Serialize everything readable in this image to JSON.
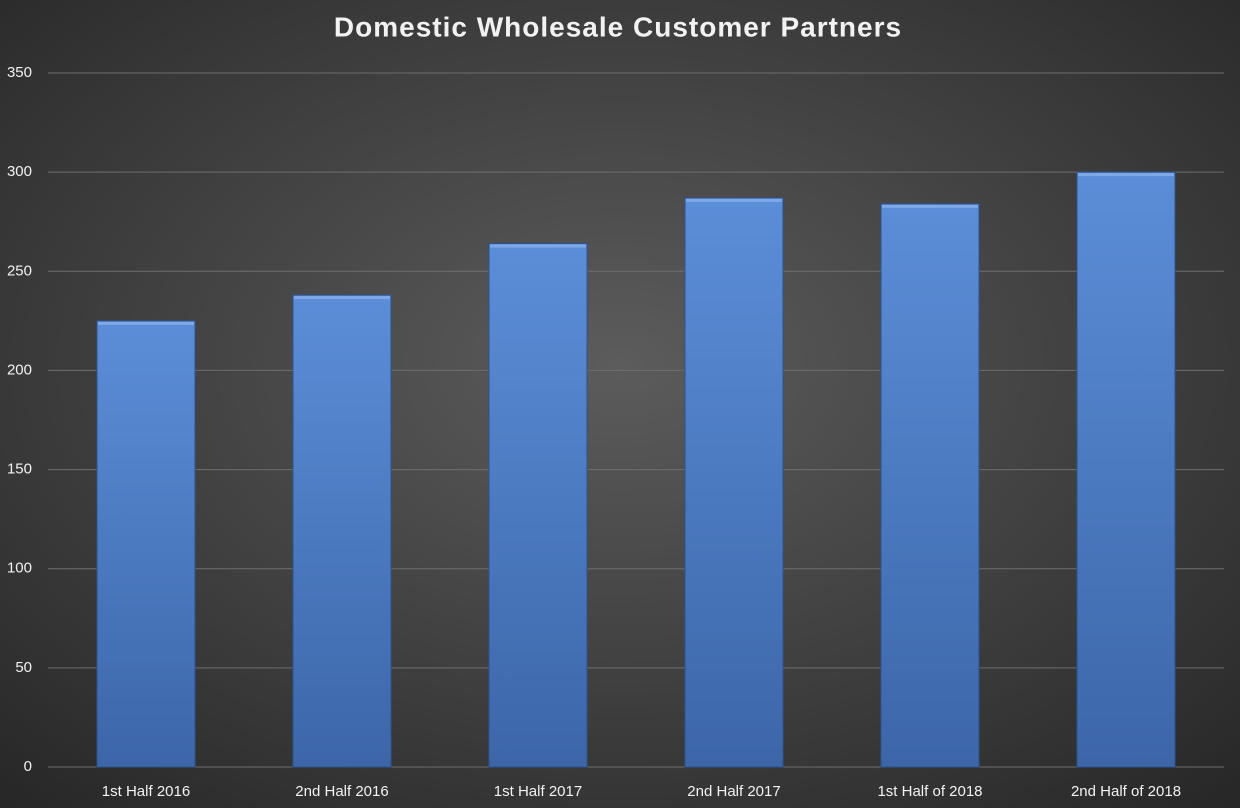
{
  "chart_data": {
    "type": "bar",
    "title": "Domestic Wholesale Customer Partners",
    "categories": [
      "1st Half 2016",
      "2nd Half 2016",
      "1st Half 2017",
      "2nd Half 2017",
      "1st Half of 2018",
      "2nd Half of 2018"
    ],
    "values": [
      225,
      238,
      264,
      287,
      284,
      300
    ],
    "color": "#4f81d0",
    "ylim": [
      0,
      350
    ],
    "yticks": [
      0,
      50,
      100,
      150,
      200,
      250,
      300,
      350
    ],
    "grid": true
  }
}
